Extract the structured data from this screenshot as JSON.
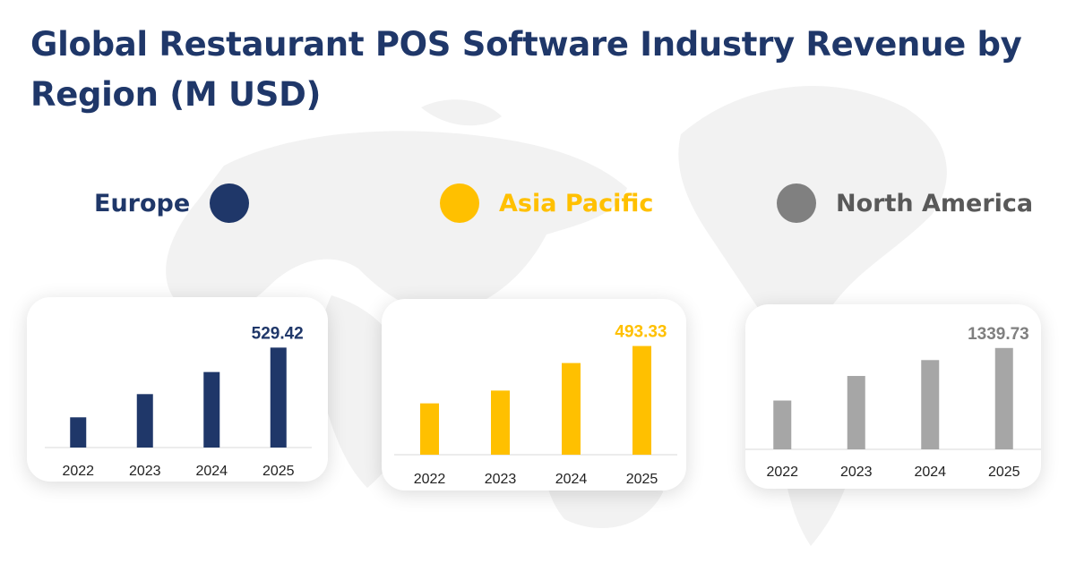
{
  "title": "Global Restaurant POS Software Industry Revenue by Region (M USD)",
  "legend": [
    {
      "label": "Europe",
      "color": "#1f3769"
    },
    {
      "label": "Asia Pacific",
      "color": "#ffc000"
    },
    {
      "label": "North America",
      "color": "#808080"
    }
  ],
  "chart_data": [
    {
      "type": "bar",
      "series": [
        {
          "name": "Europe",
          "values": [
            160,
            283,
            400,
            529.42
          ]
        }
      ],
      "categories": [
        "2022",
        "2023",
        "2024",
        "2025"
      ],
      "value_label": "529.42",
      "color": "#1f3769",
      "ylim": [
        0,
        550
      ]
    },
    {
      "type": "bar",
      "series": [
        {
          "name": "Asia Pacific",
          "values": [
            233,
            291,
            416,
            493.33
          ]
        }
      ],
      "categories": [
        "2022",
        "2023",
        "2024",
        "2025"
      ],
      "value_label": "493.33",
      "color": "#ffc000",
      "ylim": [
        0,
        520
      ]
    },
    {
      "type": "bar",
      "series": [
        {
          "name": "North America",
          "values": [
            645,
            970,
            1180,
            1339.73
          ]
        }
      ],
      "categories": [
        "2022",
        "2023",
        "2024",
        "2025"
      ],
      "value_label": "1339.73",
      "color": "#a6a6a6",
      "value_label_color": "#808080",
      "ylim": [
        0,
        1420
      ]
    }
  ]
}
